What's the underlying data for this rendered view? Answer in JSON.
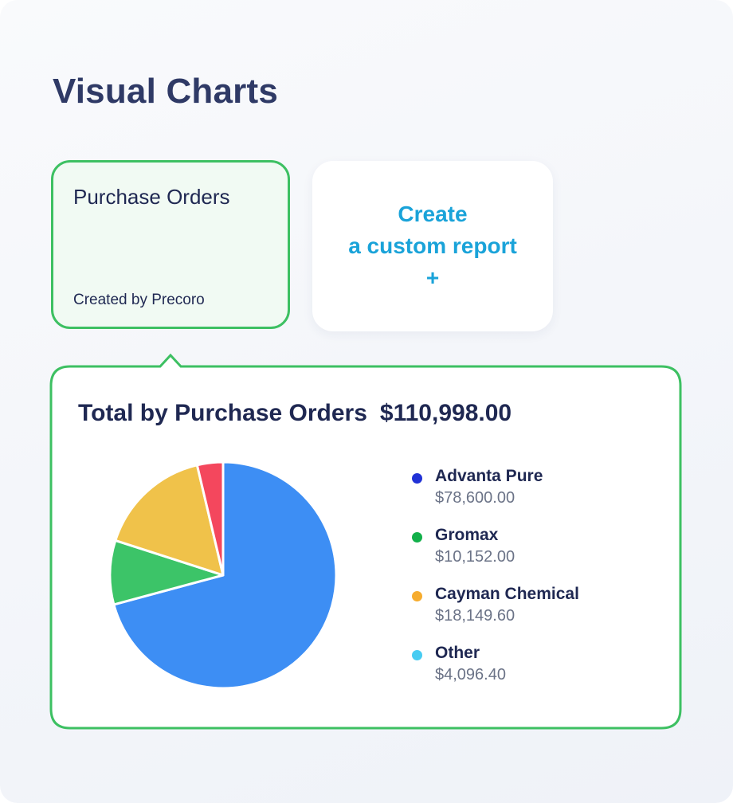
{
  "page": {
    "title": "Visual Charts"
  },
  "cards": {
    "purchase_orders": {
      "title": "Purchase Orders",
      "subtitle": "Created by Precoro"
    },
    "custom_report": {
      "line1": "Create",
      "line2": "a custom report",
      "icon": "plus-icon",
      "icon_glyph": "+"
    }
  },
  "colors": {
    "accent_green": "#3dc062",
    "accent_blue": "#1aa3d9"
  },
  "chart_data": {
    "type": "pie",
    "title": "Total by Purchase Orders",
    "total": "$110,998.00",
    "slices": [
      {
        "name": "Advanta Pure",
        "value": 78600.0,
        "label": "$78,600.00",
        "legend_color": "#2132d6",
        "slice_color": "#3d8ef4"
      },
      {
        "name": "Gromax",
        "value": 10152.0,
        "label": "$10,152.00",
        "legend_color": "#12b04a",
        "slice_color": "#3cc468"
      },
      {
        "name": "Cayman Chemical",
        "value": 18149.6,
        "label": "$18,149.60",
        "legend_color": "#f6ac2e",
        "slice_color": "#f0c24a"
      },
      {
        "name": "Other",
        "value": 4096.4,
        "label": "$4,096.40",
        "legend_color": "#47ccf2",
        "slice_color": "#f4475d"
      }
    ],
    "legend_position": "right"
  }
}
